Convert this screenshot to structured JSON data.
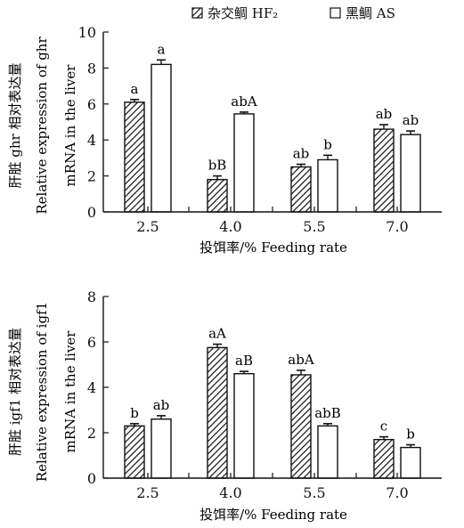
{
  "legend": {
    "items": [
      {
        "name": "杂交鲷 HF₂",
        "pattern": "hatch"
      },
      {
        "name": "黑鲷 AS",
        "pattern": "white"
      }
    ]
  },
  "chart_data": [
    {
      "type": "bar",
      "title": "",
      "categories": [
        "2.5",
        "4.0",
        "5.5",
        "7.0"
      ],
      "xlabel": "投饵率/% Feeding rate",
      "ylabel_cn": "肝脏 ghr 相对表达量",
      "ylabel_en_1": "Relative expression of ghr",
      "ylabel_en_2": "mRNA in the liver",
      "ylim": [
        0,
        10
      ],
      "yticks": [
        "0",
        "2",
        "4",
        "6",
        "8",
        "10"
      ],
      "series": [
        {
          "name": "杂交鲷 HF₂",
          "values": [
            6.1,
            1.8,
            2.5,
            4.6
          ],
          "errors": [
            0.15,
            0.2,
            0.15,
            0.25
          ],
          "labels": [
            "a",
            "bB",
            "ab",
            "ab"
          ]
        },
        {
          "name": "黑鲷 AS",
          "values": [
            8.2,
            5.45,
            2.9,
            4.3
          ],
          "errors": [
            0.25,
            0.1,
            0.25,
            0.2
          ],
          "labels": [
            "a",
            "abA",
            "b",
            "ab"
          ]
        }
      ]
    },
    {
      "type": "bar",
      "title": "",
      "categories": [
        "2.5",
        "4.0",
        "5.5",
        "7.0"
      ],
      "xlabel": "投饵率/% Feeding rate",
      "ylabel_cn": "肝脏 igf1 相对表达量",
      "ylabel_en_1": "Relative expression of igf1",
      "ylabel_en_2": "mRNA in the liver",
      "ylim": [
        0,
        8
      ],
      "yticks": [
        "0",
        "2",
        "4",
        "6",
        "8"
      ],
      "series": [
        {
          "name": "杂交鲷 HF₂",
          "values": [
            2.3,
            5.75,
            4.55,
            1.7
          ],
          "errors": [
            0.1,
            0.15,
            0.2,
            0.12
          ],
          "labels": [
            "b",
            "aA",
            "abA",
            "c"
          ]
        },
        {
          "name": "黑鲷 AS",
          "values": [
            2.6,
            4.6,
            2.3,
            1.35
          ],
          "errors": [
            0.15,
            0.1,
            0.1,
            0.12
          ],
          "labels": [
            "ab",
            "aB",
            "abB",
            "b"
          ]
        }
      ]
    }
  ],
  "colors": {
    "bar_hatch": "#111111",
    "bar_fill_white": "#ffffff",
    "axis": "#111111"
  }
}
